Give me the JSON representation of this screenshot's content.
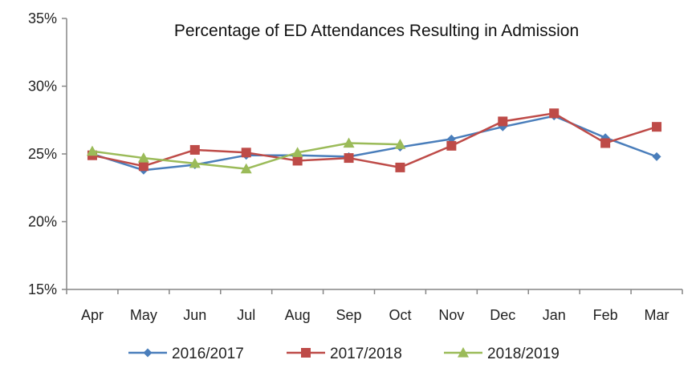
{
  "chart_data": {
    "type": "line",
    "title": "Percentage of ED Attendances Resulting in Admission",
    "xlabel": "",
    "ylabel": "",
    "categories": [
      "Apr",
      "May",
      "Jun",
      "Jul",
      "Aug",
      "Sep",
      "Oct",
      "Nov",
      "Dec",
      "Jan",
      "Feb",
      "Mar"
    ],
    "ylim": [
      15,
      35
    ],
    "yticks": [
      15,
      20,
      25,
      30,
      35
    ],
    "ytick_labels": [
      "15%",
      "20%",
      "25%",
      "30%",
      "35%"
    ],
    "grid": false,
    "legend_position": "bottom",
    "series": [
      {
        "name": "2016/2017",
        "color": "#4a7ebb",
        "marker": "diamond",
        "values": [
          25.0,
          23.8,
          24.2,
          24.9,
          24.9,
          24.8,
          25.5,
          26.1,
          27.0,
          27.8,
          26.2,
          24.8
        ]
      },
      {
        "name": "2017/2018",
        "color": "#be4b48",
        "marker": "square",
        "values": [
          24.9,
          24.1,
          25.3,
          25.1,
          24.5,
          24.7,
          24.0,
          25.6,
          27.4,
          28.0,
          25.8,
          27.0
        ]
      },
      {
        "name": "2018/2019",
        "color": "#9bbb59",
        "marker": "triangle",
        "values": [
          25.2,
          24.7,
          24.3,
          23.9,
          25.1,
          25.8,
          25.7,
          null,
          null,
          null,
          null,
          null
        ]
      }
    ]
  }
}
